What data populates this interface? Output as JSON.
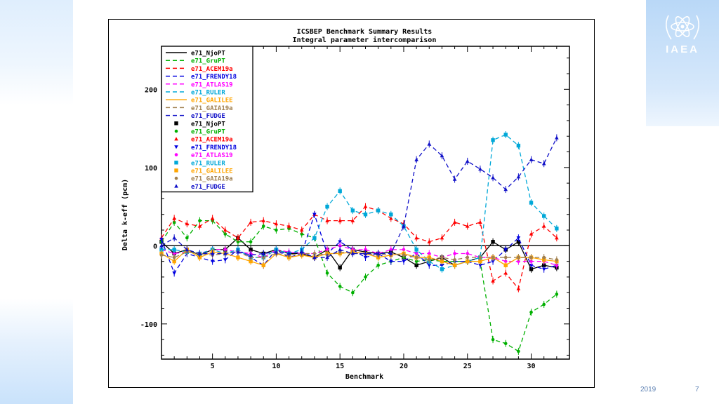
{
  "logo": {
    "text": "IAEA",
    "icon": "iaea-atom-laurel-icon"
  },
  "footer": {
    "year": "2019",
    "page": "7"
  },
  "chart_data": {
    "type": "line",
    "title": "ICSBEP Benchmark Summary Results",
    "subtitle": "Integral parameter intercomparison",
    "xlabel": "Benchmark",
    "ylabel": "Delta k-eff (pcm)",
    "xlim": [
      1,
      33
    ],
    "ylim": [
      -145,
      255
    ],
    "xticks": [
      5,
      10,
      15,
      20,
      25,
      30
    ],
    "yticks": [
      -100,
      0,
      100,
      200
    ],
    "grid": false,
    "zero_line": true,
    "legend_position": "top-left",
    "x": [
      1,
      2,
      3,
      4,
      5,
      6,
      7,
      8,
      9,
      10,
      11,
      12,
      13,
      14,
      15,
      16,
      17,
      18,
      19,
      20,
      21,
      22,
      23,
      24,
      25,
      26,
      27,
      28,
      29,
      30,
      31,
      32
    ],
    "series": [
      {
        "name": "e71_NjoPT",
        "color": "#000000",
        "dash": "solid",
        "marker": "square",
        "values": [
          5,
          -10,
          -5,
          -12,
          -5,
          -5,
          10,
          -5,
          -10,
          -5,
          -10,
          -10,
          -15,
          -5,
          -28,
          -5,
          -8,
          -10,
          -8,
          -15,
          -25,
          -20,
          -15,
          -25,
          -20,
          -15,
          5,
          -5,
          5,
          -30,
          -25,
          -28
        ]
      },
      {
        "name": "e71_GruPT",
        "color": "#00b000",
        "dash": "dashed",
        "marker": "circle",
        "values": [
          5,
          30,
          10,
          32,
          32,
          15,
          5,
          5,
          25,
          20,
          22,
          15,
          10,
          -35,
          -52,
          -60,
          -40,
          -25,
          -20,
          -15,
          -20,
          -18,
          -20,
          -20,
          -20,
          -20,
          -120,
          -125,
          -135,
          -85,
          -75,
          -62
        ]
      },
      {
        "name": "e71_ACEM19a",
        "color": "#ff0000",
        "dash": "dashed",
        "marker": "triangle-up",
        "values": [
          10,
          35,
          28,
          25,
          35,
          20,
          10,
          30,
          32,
          28,
          25,
          20,
          40,
          32,
          32,
          32,
          50,
          45,
          35,
          28,
          10,
          5,
          10,
          30,
          25,
          30,
          -45,
          -35,
          -55,
          15,
          25,
          10
        ]
      },
      {
        "name": "e71_FRENDY18",
        "color": "#0000e0",
        "dash": "dashed",
        "marker": "triangle-down",
        "values": [
          8,
          -35,
          -10,
          -15,
          -20,
          -18,
          -5,
          -15,
          -25,
          -5,
          -15,
          -10,
          40,
          -10,
          5,
          -5,
          -15,
          -10,
          -20,
          -20,
          -10,
          -25,
          -25,
          -20,
          -20,
          -25,
          -20,
          -5,
          10,
          -25,
          -30,
          -25
        ]
      },
      {
        "name": "e71_ATLAS19",
        "color": "#ff00ff",
        "dash": "dashed",
        "marker": "circle",
        "values": [
          -5,
          -10,
          -8,
          -10,
          -5,
          -5,
          -8,
          -10,
          -15,
          -5,
          -8,
          -10,
          -10,
          -5,
          0,
          -5,
          -5,
          -10,
          -5,
          -5,
          -10,
          -10,
          -15,
          -10,
          -10,
          -15,
          -15,
          -20,
          -20,
          -20,
          -20,
          -25
        ]
      },
      {
        "name": "e71_RULER",
        "color": "#00a8d8",
        "dash": "dashed",
        "marker": "square",
        "values": [
          -5,
          -5,
          -8,
          -10,
          -5,
          -10,
          -5,
          -15,
          -15,
          -5,
          -10,
          -5,
          10,
          50,
          70,
          45,
          40,
          45,
          40,
          25,
          -5,
          -20,
          -30,
          -25,
          -20,
          -15,
          135,
          142,
          128,
          55,
          38,
          22
        ]
      },
      {
        "name": "e71_GALILEE",
        "color": "#ffa500",
        "dash": "solid",
        "marker": "square",
        "values": [
          -10,
          -20,
          -5,
          -15,
          -8,
          -10,
          -15,
          -20,
          -25,
          -10,
          -15,
          -12,
          -15,
          -10,
          -10,
          -8,
          -10,
          -15,
          -12,
          -10,
          -15,
          -15,
          -20,
          -25,
          -20,
          -20,
          -15,
          -25,
          -15,
          -15,
          -18,
          -20
        ]
      },
      {
        "name": "e71_GAIA19a",
        "color": "#a08050",
        "dash": "dashed",
        "marker": "circle",
        "values": [
          -12,
          -15,
          -8,
          -10,
          -12,
          -10,
          -8,
          -15,
          -15,
          -10,
          -12,
          -10,
          -10,
          -12,
          -8,
          -10,
          -10,
          -12,
          -10,
          -12,
          -15,
          -18,
          -15,
          -18,
          -15,
          -15,
          -15,
          -15,
          -15,
          -15,
          -15,
          -18
        ]
      },
      {
        "name": "e71_FUDGE",
        "color": "#1010c8",
        "dash": "dashed",
        "marker": "triangle-up",
        "values": [
          0,
          10,
          -5,
          -10,
          -10,
          -10,
          -8,
          -12,
          -10,
          -8,
          -10,
          -8,
          -15,
          -15,
          -5,
          -10,
          -10,
          -10,
          -10,
          25,
          110,
          130,
          115,
          85,
          108,
          98,
          87,
          72,
          88,
          110,
          105,
          138
        ]
      }
    ]
  }
}
